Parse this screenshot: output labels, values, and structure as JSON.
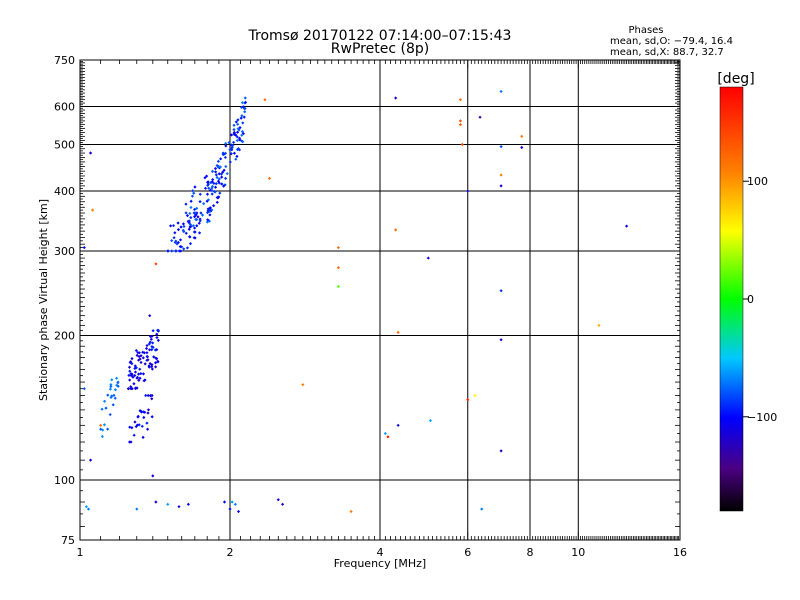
{
  "chart_data": {
    "type": "scatter",
    "title": "Tromsø 20170122 07:14:00–07:15:43",
    "subtitle": "RwPretec (8p)",
    "stats": {
      "title": "Phases",
      "line_o": "mean, sd,O: −79.4, 16.4",
      "line_x": "mean, sd,X:  88.7, 32.7"
    },
    "xlabel": "Frequency [MHz]",
    "ylabel": "Stationary phase Virtual Height [km]",
    "xscale": "log",
    "yscale": "log",
    "xlim": [
      1,
      16
    ],
    "ylim": [
      75,
      750
    ],
    "xticks": [
      {
        "v": 1,
        "label": "1"
      },
      {
        "v": 2,
        "label": "2"
      },
      {
        "v": 4,
        "label": "4"
      },
      {
        "v": 6,
        "label": "6"
      },
      {
        "v": 8,
        "label": "8"
      },
      {
        "v": 10,
        "label": "10"
      },
      {
        "v": 16,
        "label": "16"
      }
    ],
    "yticks": [
      {
        "v": 75,
        "label": "75"
      },
      {
        "v": 100,
        "label": "100"
      },
      {
        "v": 200,
        "label": "200"
      },
      {
        "v": 300,
        "label": "300"
      },
      {
        "v": 400,
        "label": "400"
      },
      {
        "v": 500,
        "label": "500"
      },
      {
        "v": 600,
        "label": "600"
      },
      {
        "v": 750,
        "label": "750"
      }
    ],
    "x_gridlines": [
      2,
      4,
      6,
      8,
      10
    ],
    "y_gridlines": [
      100,
      200,
      300,
      400,
      500,
      600
    ],
    "grid": true,
    "colorbar": {
      "label": "[deg]",
      "range": [
        -180,
        180
      ],
      "ticks": [
        {
          "v": 100,
          "label": "100"
        },
        {
          "v": 0,
          "label": "0"
        },
        {
          "v": -100,
          "label": "−100"
        }
      ]
    },
    "clusters": [
      {
        "fmin": 1.5,
        "fmax": 1.75,
        "hmin": 300,
        "hmax": 360,
        "pmin": -110,
        "pmax": -80,
        "n": 55
      },
      {
        "fmin": 1.6,
        "fmax": 1.9,
        "hmin": 330,
        "hmax": 450,
        "pmin": -110,
        "pmax": -70,
        "n": 45
      },
      {
        "fmin": 1.8,
        "fmax": 2.15,
        "hmin": 340,
        "hmax": 640,
        "pmin": -110,
        "pmax": -70,
        "n": 110
      },
      {
        "fmin": 1.25,
        "fmax": 1.45,
        "hmin": 155,
        "hmax": 205,
        "pmin": -120,
        "pmax": -90,
        "n": 90
      },
      {
        "fmin": 1.25,
        "fmax": 1.4,
        "hmin": 120,
        "hmax": 150,
        "pmin": -120,
        "pmax": -90,
        "n": 30
      },
      {
        "fmin": 1.1,
        "fmax": 1.2,
        "hmin": 120,
        "hmax": 175,
        "pmin": -80,
        "pmax": -60,
        "n": 25
      }
    ],
    "points": [
      {
        "x": 1.02,
        "y": 305,
        "p": -100
      },
      {
        "x": 1.05,
        "y": 480,
        "p": -110
      },
      {
        "x": 1.06,
        "y": 365,
        "p": 110
      },
      {
        "x": 1.05,
        "y": 110,
        "p": -110
      },
      {
        "x": 1.02,
        "y": 155,
        "p": -80
      },
      {
        "x": 1.03,
        "y": 88,
        "p": -60
      },
      {
        "x": 1.04,
        "y": 87,
        "p": -70
      },
      {
        "x": 1.1,
        "y": 130,
        "p": 120
      },
      {
        "x": 1.3,
        "y": 87,
        "p": -70
      },
      {
        "x": 1.4,
        "y": 102,
        "p": -110
      },
      {
        "x": 1.42,
        "y": 90,
        "p": -110
      },
      {
        "x": 1.5,
        "y": 89,
        "p": -60
      },
      {
        "x": 1.58,
        "y": 88,
        "p": -110
      },
      {
        "x": 1.65,
        "y": 89,
        "p": -100
      },
      {
        "x": 1.95,
        "y": 90,
        "p": -100
      },
      {
        "x": 2.0,
        "y": 87,
        "p": -100
      },
      {
        "x": 2.02,
        "y": 90,
        "p": -60
      },
      {
        "x": 2.05,
        "y": 89,
        "p": -70
      },
      {
        "x": 2.08,
        "y": 86,
        "p": -110
      },
      {
        "x": 2.5,
        "y": 91,
        "p": -110
      },
      {
        "x": 2.55,
        "y": 89,
        "p": -110
      },
      {
        "x": 3.5,
        "y": 86,
        "p": 110
      },
      {
        "x": 1.42,
        "y": 282,
        "p": 140
      },
      {
        "x": 1.38,
        "y": 220,
        "p": -110
      },
      {
        "x": 2.35,
        "y": 620,
        "p": 120
      },
      {
        "x": 2.4,
        "y": 425,
        "p": 120
      },
      {
        "x": 2.8,
        "y": 158,
        "p": 110
      },
      {
        "x": 3.3,
        "y": 305,
        "p": 120
      },
      {
        "x": 3.3,
        "y": 277,
        "p": 120
      },
      {
        "x": 3.3,
        "y": 253,
        "p": 20
      },
      {
        "x": 4.1,
        "y": 125,
        "p": -60
      },
      {
        "x": 4.15,
        "y": 123,
        "p": 160
      },
      {
        "x": 4.3,
        "y": 625,
        "p": -120
      },
      {
        "x": 4.3,
        "y": 332,
        "p": 120
      },
      {
        "x": 4.35,
        "y": 203,
        "p": 120
      },
      {
        "x": 4.35,
        "y": 130,
        "p": -110
      },
      {
        "x": 5.0,
        "y": 290,
        "p": -110
      },
      {
        "x": 5.05,
        "y": 133,
        "p": -60
      },
      {
        "x": 5.8,
        "y": 620,
        "p": 120
      },
      {
        "x": 5.8,
        "y": 560,
        "p": 130
      },
      {
        "x": 5.8,
        "y": 550,
        "p": 130
      },
      {
        "x": 5.85,
        "y": 500,
        "p": 140
      },
      {
        "x": 6.0,
        "y": 400,
        "p": -110
      },
      {
        "x": 6.0,
        "y": 147,
        "p": 160
      },
      {
        "x": 6.2,
        "y": 150,
        "p": 60
      },
      {
        "x": 6.35,
        "y": 570,
        "p": -130
      },
      {
        "x": 6.4,
        "y": 87,
        "p": -70
      },
      {
        "x": 7.0,
        "y": 645,
        "p": -70
      },
      {
        "x": 7.0,
        "y": 495,
        "p": -80
      },
      {
        "x": 7.0,
        "y": 432,
        "p": 110
      },
      {
        "x": 7.0,
        "y": 410,
        "p": -110
      },
      {
        "x": 7.0,
        "y": 248,
        "p": -90
      },
      {
        "x": 7.0,
        "y": 196,
        "p": -110
      },
      {
        "x": 7.0,
        "y": 115,
        "p": -120
      },
      {
        "x": 7.7,
        "y": 520,
        "p": 110
      },
      {
        "x": 7.7,
        "y": 493,
        "p": -110
      },
      {
        "x": 11.0,
        "y": 210,
        "p": 90
      },
      {
        "x": 12.5,
        "y": 338,
        "p": -110
      }
    ]
  }
}
